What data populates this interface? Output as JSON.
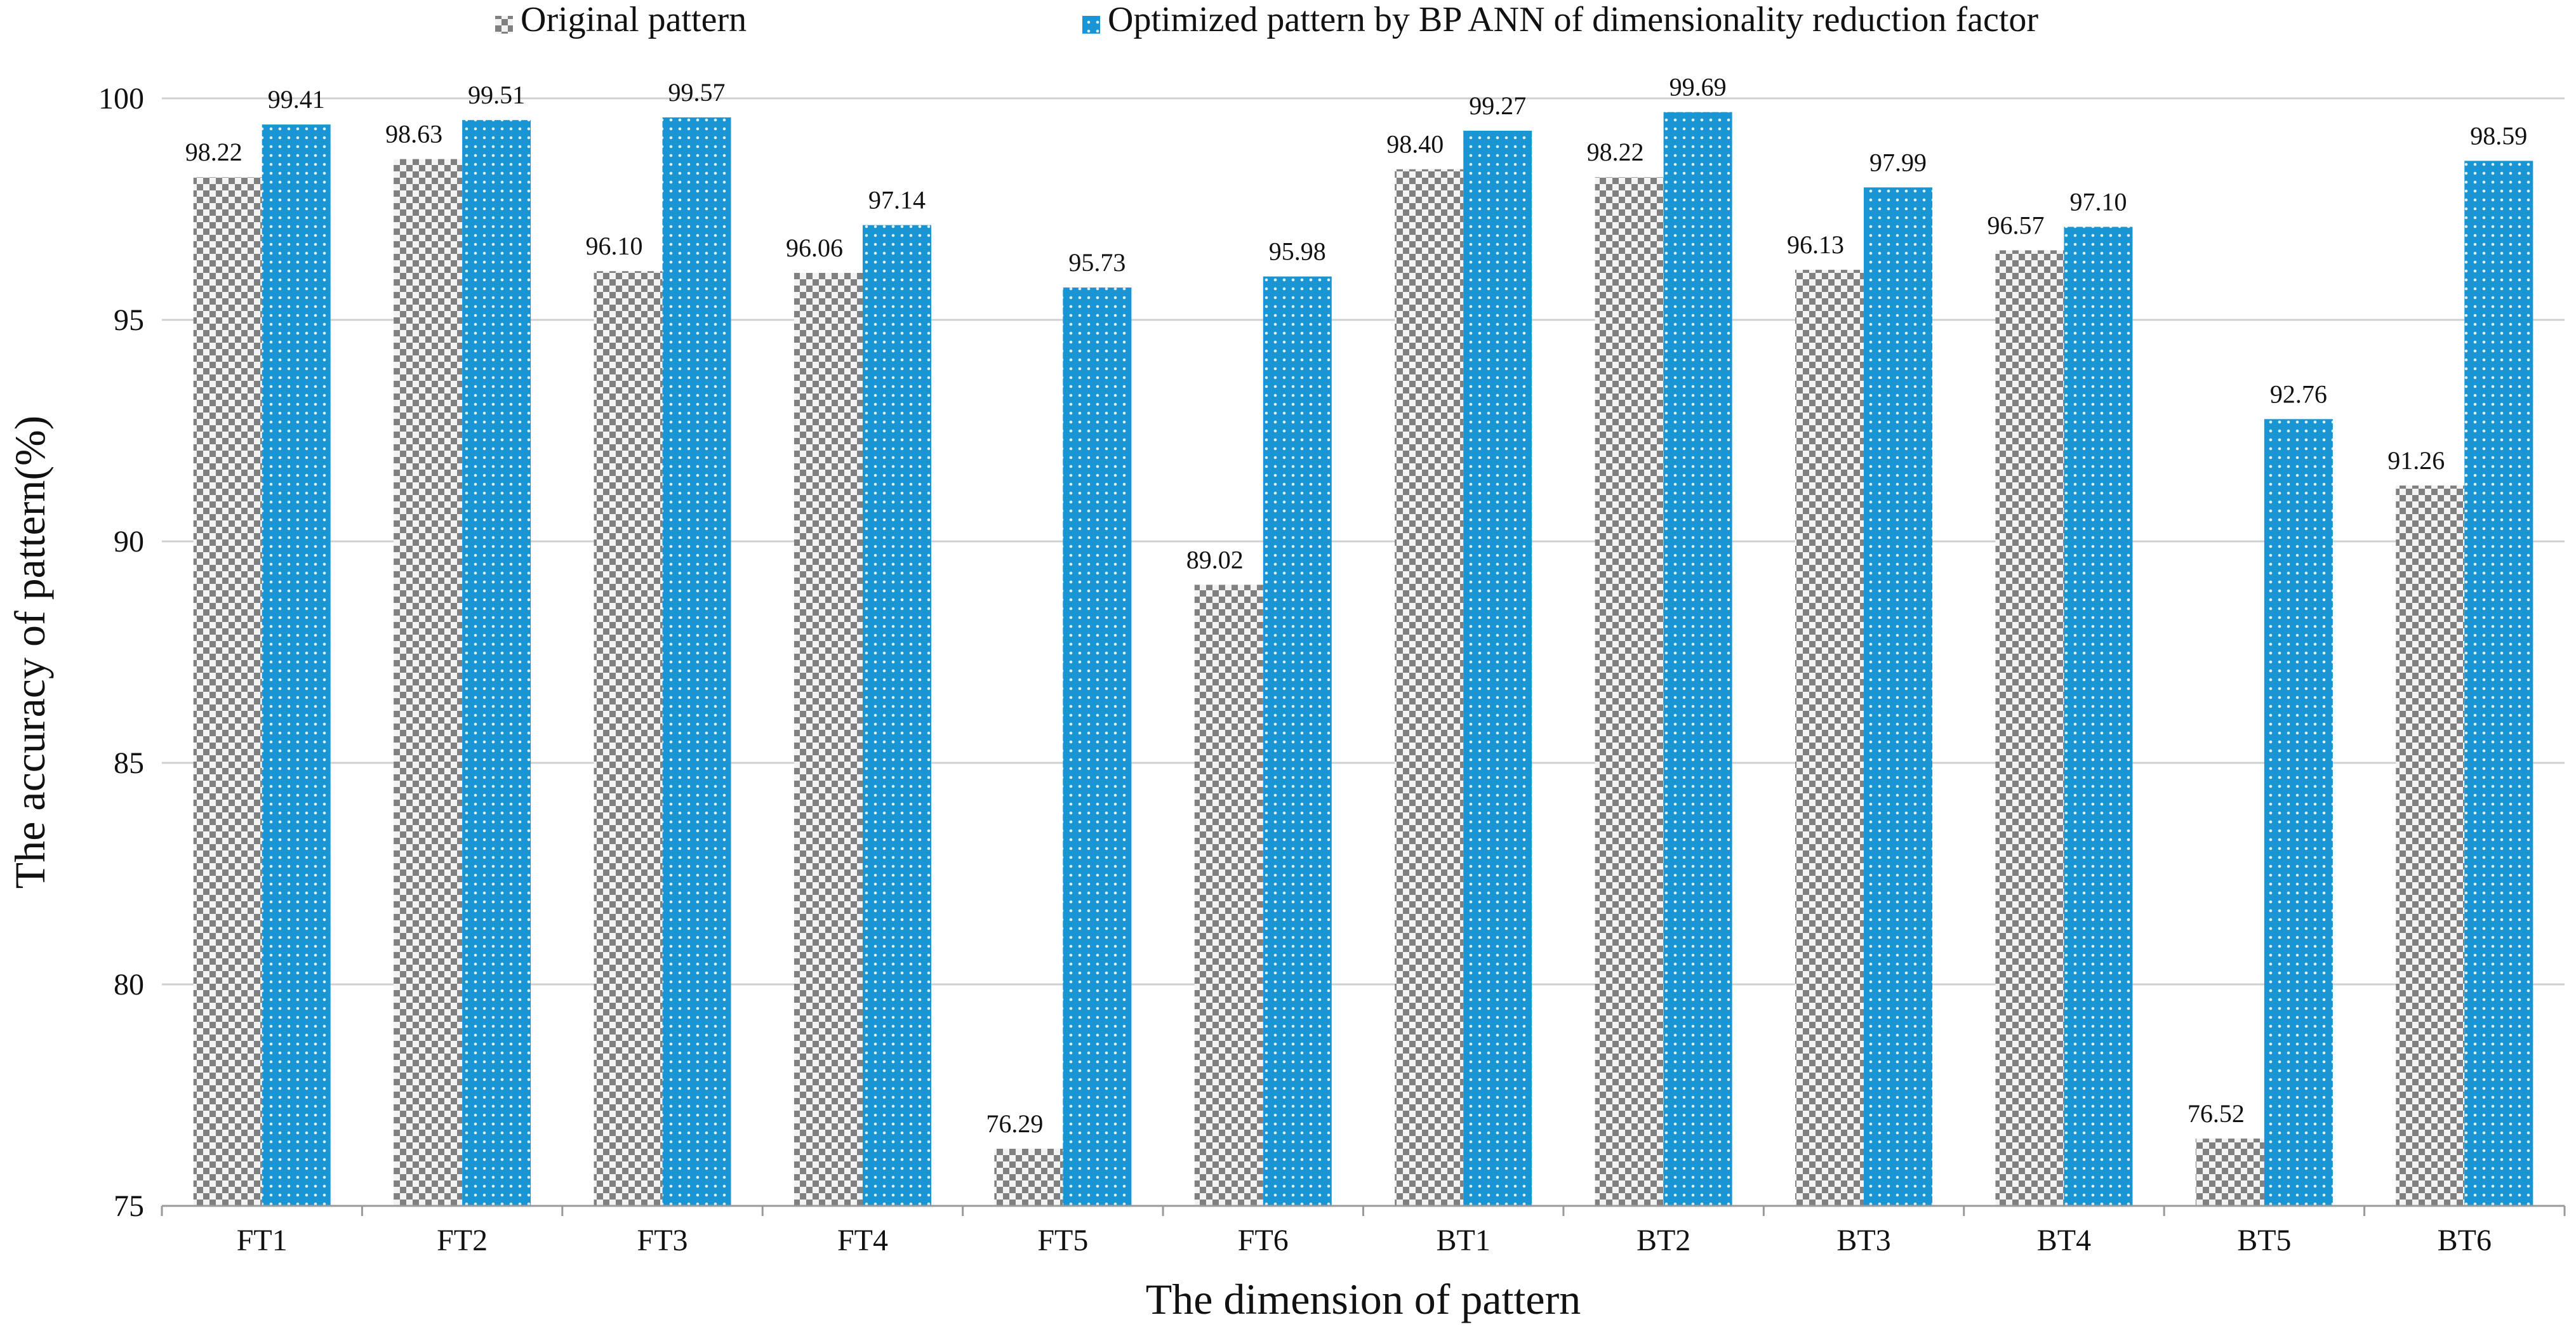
{
  "chart_data": {
    "type": "bar",
    "title": "",
    "xlabel": "The dimension of pattern",
    "ylabel": "The accuracy of pattern(%)",
    "categories": [
      "FT1",
      "FT2",
      "FT3",
      "FT4",
      "FT5",
      "FT6",
      "BT1",
      "BT2",
      "BT3",
      "BT4",
      "BT5",
      "BT6"
    ],
    "series": [
      {
        "name": "Original pattern",
        "color": "#8a8a8a",
        "pattern": "checkerboard",
        "values": [
          98.22,
          98.63,
          96.1,
          96.06,
          76.29,
          89.02,
          98.4,
          98.22,
          96.13,
          96.57,
          76.52,
          91.26
        ],
        "labels": [
          "98.22",
          "98.63",
          "96.10",
          "96.06",
          "76.29",
          "89.02",
          "98.40",
          "98.22",
          "96.13",
          "96.57",
          "76.52",
          "91.26"
        ]
      },
      {
        "name": "Optimized pattern by BP ANN of dimensionality reduction factor",
        "color": "#1a95d3",
        "pattern": "dotted",
        "values": [
          99.41,
          99.51,
          99.57,
          97.14,
          95.73,
          95.98,
          99.27,
          99.69,
          97.99,
          97.1,
          92.76,
          98.59
        ],
        "labels": [
          "99.41",
          "99.51",
          "99.57",
          "97.14",
          "95.73",
          "95.98",
          "99.27",
          "99.69",
          "97.99",
          "97.10",
          "92.76",
          "98.59"
        ]
      }
    ],
    "ylim": [
      75,
      100
    ],
    "yticks": [
      75,
      80,
      85,
      90,
      95,
      100
    ],
    "ytick_labels": [
      "75",
      "80",
      "85",
      "90",
      "95",
      "100"
    ],
    "grid": true,
    "legend_position": "top-center"
  }
}
